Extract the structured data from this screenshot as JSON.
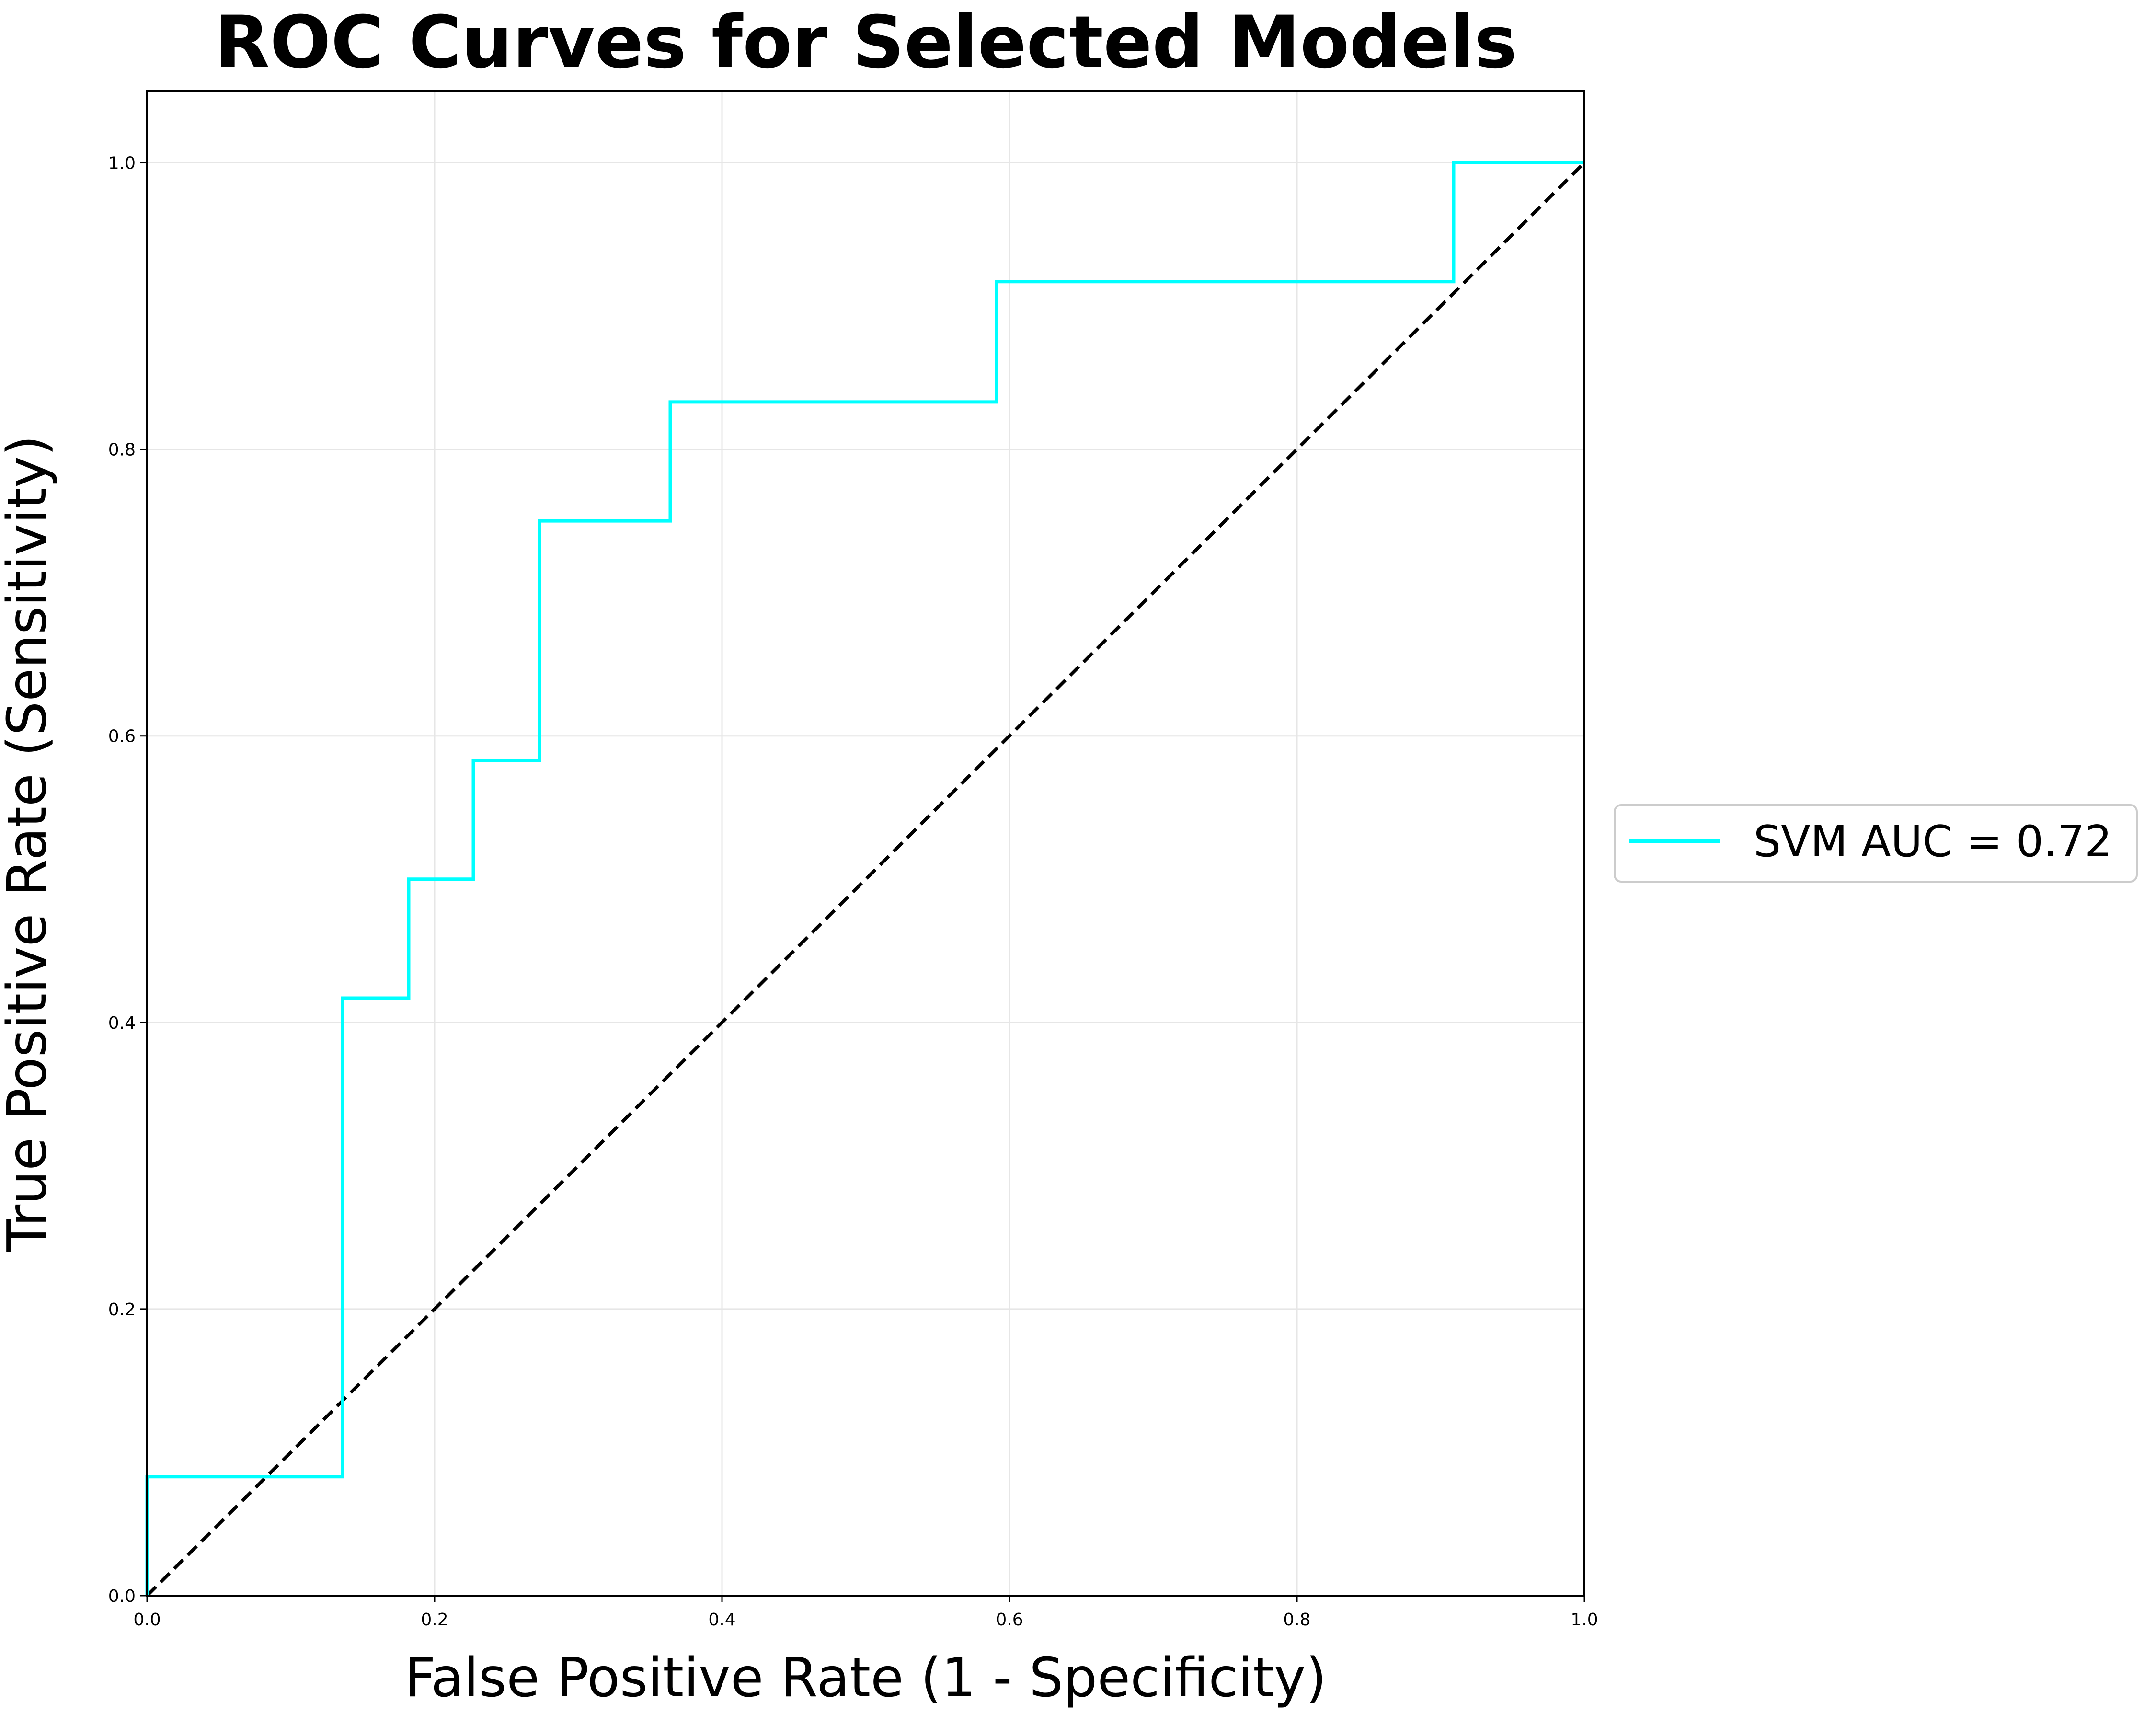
{
  "chart_data": {
    "type": "line",
    "title": "ROC Curves for Selected Models",
    "xlabel": "False Positive Rate (1 - Specificity)",
    "ylabel": "True Positive Rate (Sensitivity)",
    "xlim": [
      0.0,
      1.0
    ],
    "ylim": [
      0.0,
      1.05
    ],
    "xticks": [
      "0.0",
      "0.2",
      "0.4",
      "0.6",
      "0.8",
      "1.0"
    ],
    "yticks": [
      "0.0",
      "0.2",
      "0.4",
      "0.6",
      "0.8",
      "1.0"
    ],
    "grid": true,
    "legend_position": "right, outside plot",
    "series": [
      {
        "name": "SVM AUC = 0.72",
        "color": "#00ffff",
        "step": true,
        "x": [
          0.0,
          0.0,
          0.136,
          0.136,
          0.182,
          0.182,
          0.227,
          0.227,
          0.273,
          0.273,
          0.364,
          0.364,
          0.591,
          0.591,
          0.909,
          0.909,
          1.0
        ],
        "y": [
          0.0,
          0.083,
          0.083,
          0.417,
          0.417,
          0.5,
          0.5,
          0.583,
          0.583,
          0.75,
          0.75,
          0.833,
          0.833,
          0.917,
          0.917,
          1.0,
          1.0
        ]
      },
      {
        "color": "#000000",
        "dashed": true,
        "x": [
          0.0,
          1.0
        ],
        "y": [
          0.0,
          1.0
        ]
      }
    ]
  }
}
